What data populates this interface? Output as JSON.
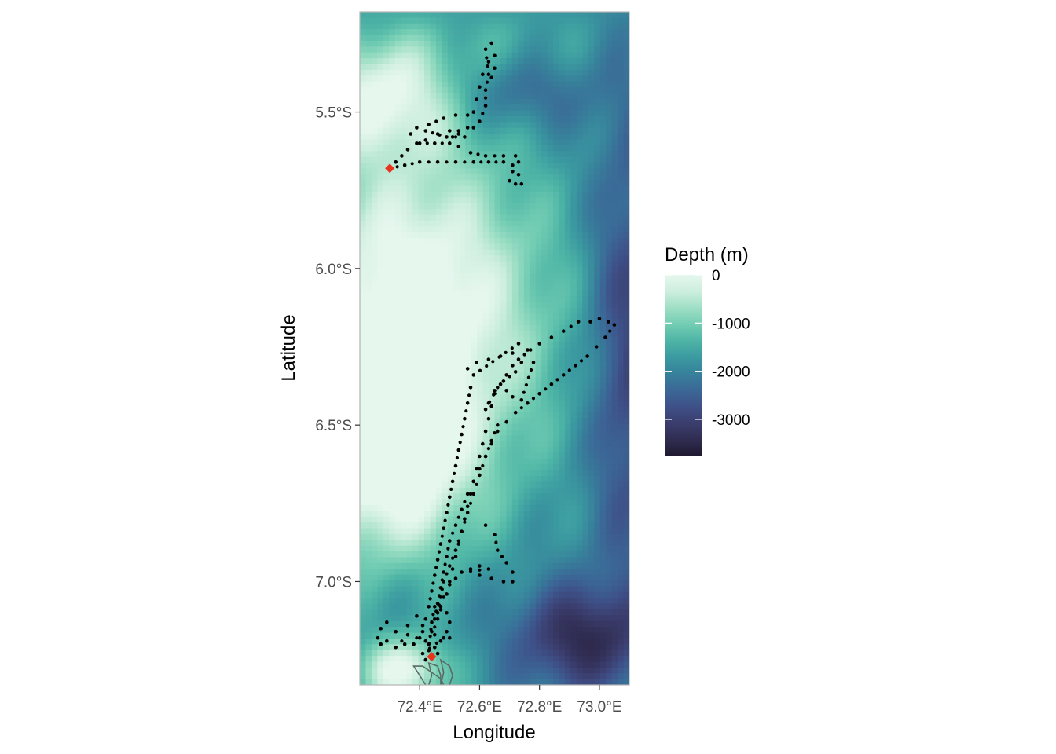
{
  "colors": {
    "depth_scale": [
      "#e6f7ee",
      "#cdeedf",
      "#9fdfc6",
      "#73cdb3",
      "#4eb5a6",
      "#3b9aa0",
      "#37819b",
      "#3b6897",
      "#3e5189",
      "#3b3e6e",
      "#302d52",
      "#1f1a30"
    ],
    "track_points": "#000000",
    "tag_marker": "#e8341c",
    "contour": "#5a6b66",
    "panel_border": "#b3b3b3",
    "tick_mark": "#333333"
  },
  "axes": {
    "x": {
      "title": "Longitude",
      "range": [
        72.2,
        73.1
      ],
      "ticks": [
        {
          "value": 72.4,
          "label": "72.4°E"
        },
        {
          "value": 72.6,
          "label": "72.6°E"
        },
        {
          "value": 72.8,
          "label": "72.8°E"
        },
        {
          "value": 73.0,
          "label": "73.0°E"
        }
      ]
    },
    "y": {
      "title": "Latitude",
      "range": [
        -7.33,
        -5.18
      ],
      "ticks": [
        {
          "value": -5.5,
          "label": "5.5°S"
        },
        {
          "value": -6.0,
          "label": "6.0°S"
        },
        {
          "value": -6.5,
          "label": "6.5°S"
        },
        {
          "value": -7.0,
          "label": "7.0°S"
        }
      ]
    }
  },
  "legend": {
    "title": "Depth (m)",
    "position": "right",
    "range": [
      -3750,
      0
    ],
    "breaks": [
      {
        "value": 0,
        "label": "0"
      },
      {
        "value": -1000,
        "label": "-1000"
      },
      {
        "value": -2000,
        "label": "-2000"
      },
      {
        "value": -3000,
        "label": "-3000"
      }
    ]
  },
  "map_data": {
    "tag_locations": [
      {
        "lon": 72.3,
        "lat": -5.68
      },
      {
        "lon": 72.44,
        "lat": -7.24
      }
    ],
    "track_north": [
      [
        72.64,
        -5.28
      ],
      [
        72.65,
        -5.32
      ],
      [
        72.63,
        -5.34
      ],
      [
        72.65,
        -5.36
      ],
      [
        72.64,
        -5.39
      ],
      [
        72.61,
        -5.38
      ],
      [
        72.6,
        -5.42
      ],
      [
        72.59,
        -5.46
      ],
      [
        72.58,
        -5.5
      ],
      [
        72.56,
        -5.51
      ],
      [
        72.52,
        -5.51
      ],
      [
        72.48,
        -5.52
      ],
      [
        72.43,
        -5.54
      ],
      [
        72.39,
        -5.55
      ],
      [
        72.37,
        -5.57
      ],
      [
        72.39,
        -5.6
      ],
      [
        72.42,
        -5.59
      ],
      [
        72.46,
        -5.57
      ],
      [
        72.5,
        -5.56
      ],
      [
        72.53,
        -5.57
      ],
      [
        72.5,
        -5.6
      ],
      [
        72.45,
        -5.6
      ],
      [
        72.4,
        -5.6
      ],
      [
        72.36,
        -5.62
      ],
      [
        72.34,
        -5.64
      ],
      [
        72.32,
        -5.66
      ],
      [
        72.3,
        -5.68
      ],
      [
        72.35,
        -5.67
      ],
      [
        72.4,
        -5.66
      ],
      [
        72.46,
        -5.66
      ],
      [
        72.52,
        -5.66
      ],
      [
        72.58,
        -5.66
      ],
      [
        72.63,
        -5.66
      ],
      [
        72.68,
        -5.66
      ],
      [
        72.71,
        -5.67
      ],
      [
        72.73,
        -5.7
      ],
      [
        72.74,
        -5.73
      ],
      [
        72.72,
        -5.73
      ],
      [
        72.7,
        -5.72
      ],
      [
        72.71,
        -5.69
      ],
      [
        72.73,
        -5.66
      ],
      [
        72.72,
        -5.64
      ],
      [
        72.68,
        -5.64
      ],
      [
        72.62,
        -5.64
      ],
      [
        72.57,
        -5.63
      ],
      [
        72.53,
        -5.61
      ],
      [
        72.51,
        -5.58
      ],
      [
        72.53,
        -5.56
      ],
      [
        72.56,
        -5.55
      ],
      [
        72.6,
        -5.53
      ],
      [
        72.62,
        -5.48
      ],
      [
        72.62,
        -5.43
      ],
      [
        72.63,
        -5.38
      ],
      [
        72.62,
        -5.3
      ],
      [
        72.58,
        -5.55
      ],
      [
        72.55,
        -5.58
      ],
      [
        72.49,
        -5.58
      ],
      [
        72.42,
        -5.56
      ]
    ],
    "track_south": [
      [
        72.44,
        -7.24
      ],
      [
        72.43,
        -7.2
      ],
      [
        72.44,
        -7.16
      ],
      [
        72.46,
        -7.12
      ],
      [
        72.47,
        -7.08
      ],
      [
        72.49,
        -7.04
      ],
      [
        72.5,
        -7.0
      ],
      [
        72.51,
        -6.96
      ],
      [
        72.52,
        -6.92
      ],
      [
        72.53,
        -6.88
      ],
      [
        72.54,
        -6.84
      ],
      [
        72.55,
        -6.8
      ],
      [
        72.56,
        -6.76
      ],
      [
        72.57,
        -6.72
      ],
      [
        72.58,
        -6.68
      ],
      [
        72.59,
        -6.64
      ],
      [
        72.6,
        -6.6
      ],
      [
        72.61,
        -6.56
      ],
      [
        72.62,
        -6.52
      ],
      [
        72.63,
        -6.48
      ],
      [
        72.64,
        -6.44
      ],
      [
        72.65,
        -6.4
      ],
      [
        72.67,
        -6.37
      ],
      [
        72.69,
        -6.34
      ],
      [
        72.71,
        -6.31
      ],
      [
        72.73,
        -6.29
      ],
      [
        72.77,
        -6.26
      ],
      [
        72.8,
        -6.24
      ],
      [
        72.84,
        -6.22
      ],
      [
        72.88,
        -6.2
      ],
      [
        72.93,
        -6.17
      ],
      [
        72.97,
        -6.17
      ],
      [
        73.0,
        -6.16
      ],
      [
        73.03,
        -6.17
      ],
      [
        73.05,
        -6.18
      ],
      [
        73.02,
        -6.22
      ],
      [
        72.99,
        -6.25
      ],
      [
        72.96,
        -6.28
      ],
      [
        72.92,
        -6.31
      ],
      [
        72.88,
        -6.34
      ],
      [
        72.84,
        -6.37
      ],
      [
        72.8,
        -6.4
      ],
      [
        72.76,
        -6.43
      ],
      [
        72.72,
        -6.46
      ],
      [
        72.69,
        -6.49
      ],
      [
        72.66,
        -6.52
      ],
      [
        72.64,
        -6.56
      ],
      [
        72.62,
        -6.6
      ],
      [
        72.6,
        -6.64
      ],
      [
        72.58,
        -6.68
      ],
      [
        72.56,
        -6.72
      ],
      [
        72.54,
        -6.77
      ],
      [
        72.52,
        -6.82
      ],
      [
        72.5,
        -6.87
      ],
      [
        72.49,
        -6.92
      ],
      [
        72.48,
        -6.97
      ],
      [
        72.47,
        -7.02
      ],
      [
        72.46,
        -7.07
      ],
      [
        72.45,
        -7.12
      ],
      [
        72.45,
        -7.17
      ],
      [
        72.56,
        -6.32
      ],
      [
        72.59,
        -6.3
      ],
      [
        72.63,
        -6.29
      ],
      [
        72.67,
        -6.28
      ],
      [
        72.71,
        -6.27
      ],
      [
        72.74,
        -6.3
      ],
      [
        72.72,
        -6.33
      ],
      [
        72.68,
        -6.36
      ],
      [
        72.65,
        -6.39
      ],
      [
        72.63,
        -6.43
      ],
      [
        72.62,
        -6.45
      ],
      [
        72.66,
        -6.38
      ],
      [
        72.69,
        -6.39
      ],
      [
        72.71,
        -6.41
      ],
      [
        72.74,
        -6.42
      ],
      [
        72.78,
        -6.3
      ],
      [
        72.76,
        -6.26
      ],
      [
        72.73,
        -6.24
      ],
      [
        72.58,
        -6.34
      ],
      [
        72.57,
        -6.38
      ],
      [
        72.56,
        -6.43
      ],
      [
        72.55,
        -6.48
      ],
      [
        72.54,
        -6.53
      ],
      [
        72.53,
        -6.58
      ],
      [
        72.52,
        -6.63
      ],
      [
        72.51,
        -6.68
      ],
      [
        72.5,
        -6.73
      ],
      [
        72.49,
        -6.78
      ],
      [
        72.48,
        -6.83
      ],
      [
        72.47,
        -6.88
      ],
      [
        72.46,
        -6.93
      ],
      [
        72.45,
        -6.98
      ],
      [
        72.44,
        -7.03
      ],
      [
        72.43,
        -7.08
      ],
      [
        72.42,
        -7.12
      ],
      [
        72.41,
        -7.16
      ],
      [
        72.66,
        -6.5
      ],
      [
        72.64,
        -6.55
      ],
      [
        72.62,
        -6.6
      ],
      [
        72.6,
        -6.66
      ],
      [
        72.58,
        -6.72
      ],
      [
        72.56,
        -6.78
      ],
      [
        72.54,
        -6.84
      ],
      [
        72.52,
        -6.9
      ],
      [
        72.5,
        -6.95
      ],
      [
        72.48,
        -7.0
      ],
      [
        72.47,
        -7.05
      ],
      [
        72.46,
        -7.1
      ],
      [
        72.62,
        -6.82
      ],
      [
        72.65,
        -6.85
      ],
      [
        72.66,
        -6.9
      ],
      [
        72.69,
        -6.94
      ],
      [
        72.71,
        -6.97
      ],
      [
        72.71,
        -7.0
      ],
      [
        72.68,
        -7.0
      ],
      [
        72.64,
        -6.99
      ],
      [
        72.6,
        -6.98
      ],
      [
        72.57,
        -6.96
      ],
      [
        72.6,
        -6.95
      ],
      [
        72.63,
        -6.96
      ],
      [
        72.54,
        -6.97
      ],
      [
        72.52,
        -6.99
      ],
      [
        72.5,
        -7.01
      ],
      [
        72.48,
        -7.05
      ],
      [
        72.29,
        -7.13
      ],
      [
        72.27,
        -7.15
      ],
      [
        72.26,
        -7.18
      ],
      [
        72.27,
        -7.2
      ],
      [
        72.29,
        -7.19
      ],
      [
        72.32,
        -7.16
      ],
      [
        72.36,
        -7.14
      ],
      [
        72.39,
        -7.11
      ],
      [
        72.41,
        -7.14
      ],
      [
        72.4,
        -7.18
      ],
      [
        72.38,
        -7.2
      ],
      [
        72.35,
        -7.2
      ],
      [
        72.32,
        -7.21
      ],
      [
        72.36,
        -7.17
      ],
      [
        72.42,
        -7.19
      ],
      [
        72.45,
        -7.21
      ],
      [
        72.47,
        -7.19
      ],
      [
        72.49,
        -7.16
      ],
      [
        72.5,
        -7.13
      ],
      [
        72.49,
        -7.1
      ],
      [
        72.47,
        -7.09
      ],
      [
        72.45,
        -7.08
      ],
      [
        72.44,
        -7.13
      ],
      [
        72.43,
        -7.22
      ],
      [
        72.46,
        -7.23
      ],
      [
        72.42,
        -7.25
      ],
      [
        72.41,
        -7.23
      ],
      [
        72.48,
        -7.18
      ],
      [
        72.5,
        -7.18
      ]
    ],
    "contours": [
      [
        [
          72.42,
          -7.33
        ],
        [
          72.4,
          -7.3
        ],
        [
          72.38,
          -7.27
        ],
        [
          72.41,
          -7.27
        ],
        [
          72.44,
          -7.29
        ],
        [
          72.47,
          -7.31
        ],
        [
          72.48,
          -7.33
        ]
      ],
      [
        [
          72.43,
          -7.33
        ],
        [
          72.44,
          -7.3
        ],
        [
          72.43,
          -7.26
        ],
        [
          72.46,
          -7.27
        ],
        [
          72.47,
          -7.3
        ],
        [
          72.47,
          -7.33
        ]
      ],
      [
        [
          72.47,
          -7.33
        ],
        [
          72.48,
          -7.29
        ],
        [
          72.47,
          -7.25
        ],
        [
          72.5,
          -7.27
        ],
        [
          72.51,
          -7.3
        ],
        [
          72.5,
          -7.33
        ]
      ]
    ]
  }
}
